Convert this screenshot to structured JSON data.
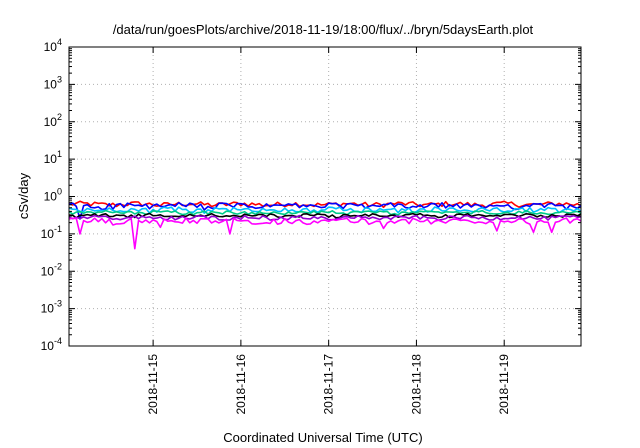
{
  "chart_data": {
    "type": "line",
    "title": "/data/run/goesPlots/archive/2018-11-19/18:00/flux/../bryn/5daysEarth.plot",
    "xlabel": "Coordinated Universal Time (UTC)",
    "ylabel": "cSv/day",
    "y_scale": "log",
    "ylim": [
      0.0001,
      10000
    ],
    "y_ticks": [
      {
        "value": 0.0001,
        "base": "10",
        "exp": "-4"
      },
      {
        "value": 0.001,
        "base": "10",
        "exp": "-3"
      },
      {
        "value": 0.01,
        "base": "10",
        "exp": "-2"
      },
      {
        "value": 0.1,
        "base": "10",
        "exp": "-1"
      },
      {
        "value": 1,
        "base": "10",
        "exp": "0"
      },
      {
        "value": 10,
        "base": "10",
        "exp": "1"
      },
      {
        "value": 100,
        "base": "10",
        "exp": "2"
      },
      {
        "value": 1000,
        "base": "10",
        "exp": "3"
      },
      {
        "value": 10000,
        "base": "10",
        "exp": "4"
      }
    ],
    "xlim": [
      "2018-11-14T01:00",
      "2018-11-19T21:00"
    ],
    "x_ticks": [
      "2018-11-15",
      "2018-11-16",
      "2018-11-17",
      "2018-11-18",
      "2018-11-19"
    ],
    "grid": true,
    "legend": "none",
    "series": [
      {
        "color": "#ff0000",
        "base": 0.62,
        "spread": 0.1,
        "dips": []
      },
      {
        "color": "#0000ff",
        "base": 0.56,
        "spread": 0.1,
        "dips": [
          {
            "x": "2018-11-14T04:00",
            "v": 0.25
          }
        ]
      },
      {
        "color": "#00bfff",
        "base": 0.44,
        "spread": 0.07,
        "dips": []
      },
      {
        "color": "#00cc88",
        "base": 0.37,
        "spread": 0.04,
        "dips": []
      },
      {
        "color": "#000000",
        "base": 0.31,
        "spread": 0.03,
        "dips": []
      },
      {
        "color": "#9400d3",
        "base": 0.27,
        "spread": 0.03,
        "dips": []
      },
      {
        "color": "#ff00ff",
        "base": 0.22,
        "spread": 0.04,
        "dips": [
          {
            "x": "2018-11-14T04:00",
            "v": 0.1
          },
          {
            "x": "2018-11-14T19:00",
            "v": 0.04
          },
          {
            "x": "2018-11-15T02:00",
            "v": 0.15
          },
          {
            "x": "2018-11-15T21:00",
            "v": 0.1
          },
          {
            "x": "2018-11-16T18:00",
            "v": 0.18
          },
          {
            "x": "2018-11-17T15:00",
            "v": 0.14
          },
          {
            "x": "2018-11-18T22:00",
            "v": 0.12
          },
          {
            "x": "2018-11-19T08:00",
            "v": 0.11
          },
          {
            "x": "2018-11-19T13:00",
            "v": 0.11
          }
        ]
      }
    ]
  }
}
